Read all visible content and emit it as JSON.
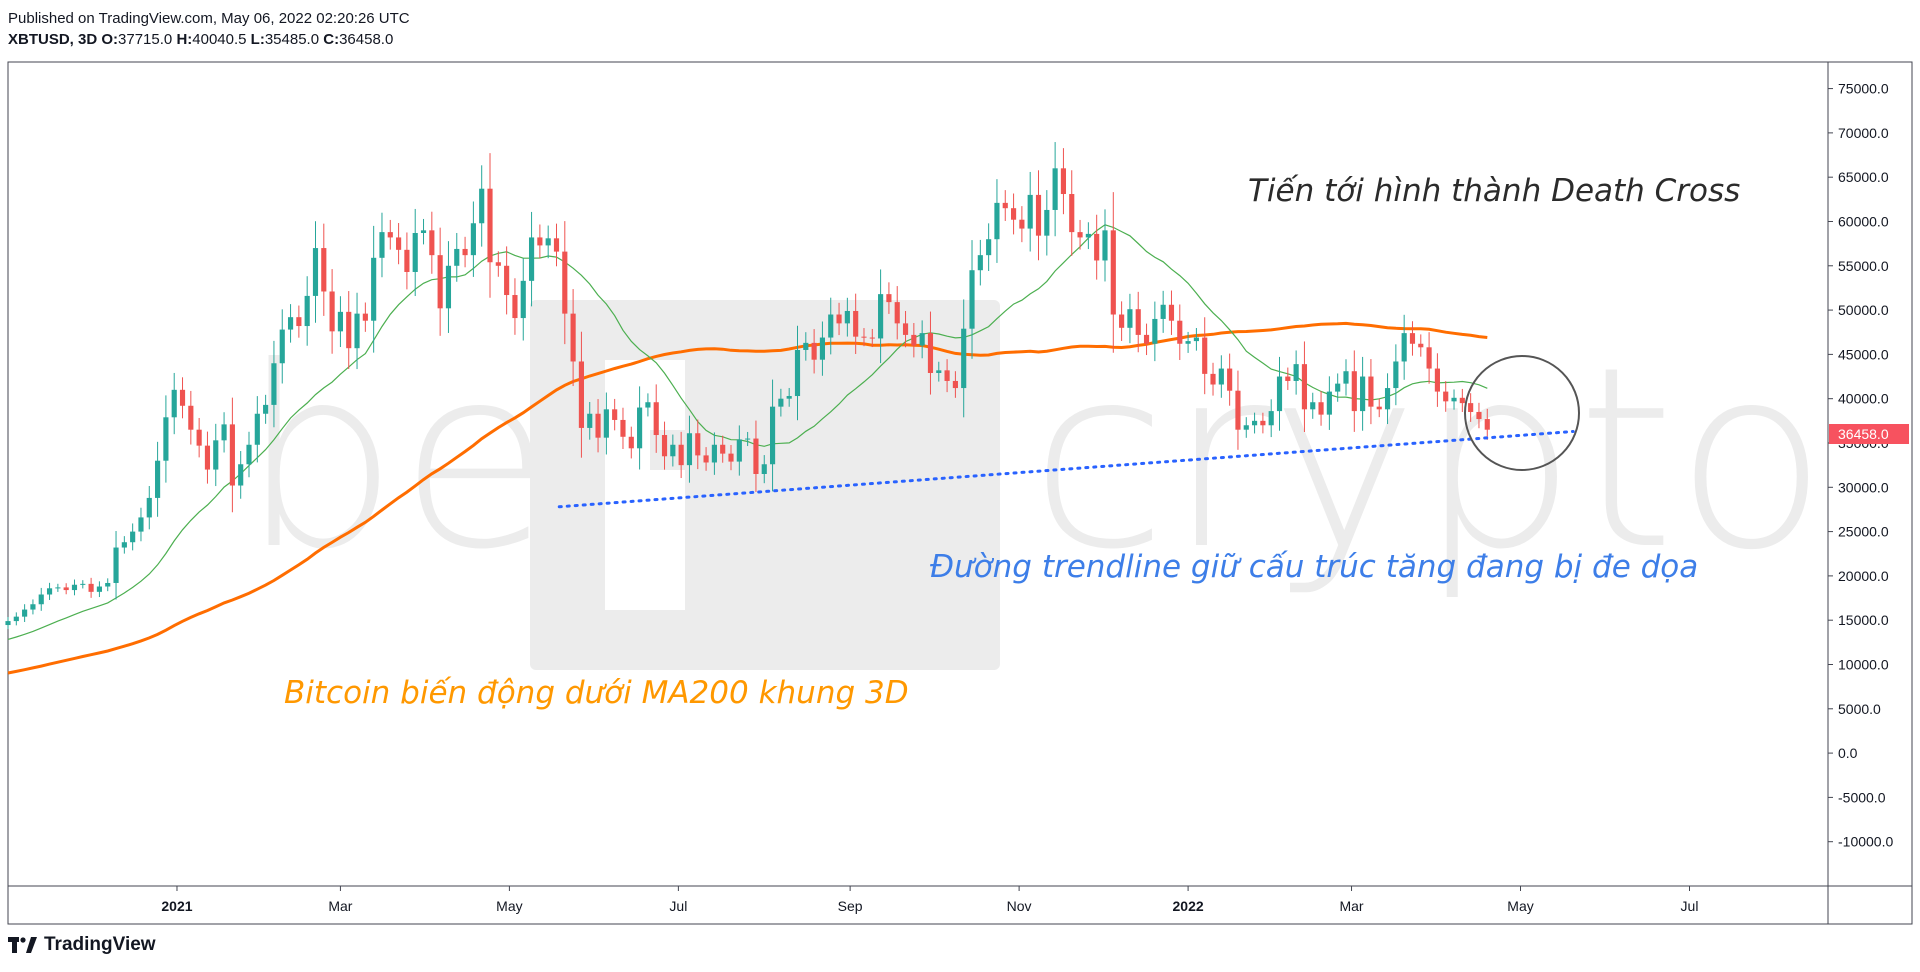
{
  "header": {
    "published": "Published on TradingView.com, May 06, 2022 02:20:26 UTC",
    "symbol": "XBTUSD, 3D",
    "o_label": "O:",
    "o_value": "37715.0",
    "h_label": "H:",
    "h_value": "40040.5",
    "l_label": "L:",
    "l_value": "35485.0",
    "c_label": "C:",
    "c_value": "36458.0"
  },
  "footer": {
    "brand": "TradingView"
  },
  "watermark": {
    "left": "be",
    "right": "crypto"
  },
  "colors": {
    "up": "#26a69a",
    "down": "#ef5350",
    "ma200": "#ff6d00",
    "ma50": "#4caf50",
    "trend": "#2962ff",
    "last_price_bg": "#f7525f",
    "anno_orange": "#ff9800",
    "anno_blue": "#3d7ee8",
    "anno_dark": "#2b2b2b"
  },
  "chart_data": {
    "type": "candlestick",
    "symbol": "XBTUSD",
    "timeframe": "3D",
    "ylim": [
      -15000,
      78000
    ],
    "y_ticks": [
      "75000.0",
      "70000.0",
      "65000.0",
      "60000.0",
      "55000.0",
      "50000.0",
      "45000.0",
      "40000.0",
      "35000.0",
      "30000.0",
      "25000.0",
      "20000.0",
      "15000.0",
      "10000.0",
      "5000.0",
      "0.0",
      "-5000.0",
      "-10000.0"
    ],
    "x_ticks": [
      {
        "label": "2021",
        "date": "2021-01-01",
        "year": true
      },
      {
        "label": "Mar",
        "date": "2021-03-01"
      },
      {
        "label": "May",
        "date": "2021-05-01"
      },
      {
        "label": "Jul",
        "date": "2021-07-01"
      },
      {
        "label": "Sep",
        "date": "2021-09-01"
      },
      {
        "label": "Nov",
        "date": "2021-11-01"
      },
      {
        "label": "2022",
        "date": "2022-01-01",
        "year": true
      },
      {
        "label": "Mar",
        "date": "2022-03-01"
      },
      {
        "label": "May",
        "date": "2022-05-01"
      },
      {
        "label": "Jul",
        "date": "2022-07-01"
      }
    ],
    "xlim": [
      "2020-11-01",
      "2022-08-20"
    ],
    "last_price": "36458.0",
    "closes": [
      14900,
      15400,
      16200,
      16800,
      17900,
      18600,
      18700,
      18400,
      19000,
      19100,
      18200,
      18800,
      19200,
      23200,
      23800,
      25000,
      26600,
      28800,
      33000,
      37900,
      41000,
      39200,
      36500,
      34700,
      32000,
      35300,
      37100,
      30200,
      32600,
      34800,
      38300,
      39300,
      44000,
      47800,
      49200,
      48200,
      51600,
      57000,
      52100,
      47600,
      49800,
      45700,
      49600,
      48800,
      55900,
      58800,
      58200,
      56800,
      54300,
      58700,
      59000,
      56200,
      50200,
      55000,
      56900,
      56200,
      59800,
      63700,
      55400,
      55000,
      51700,
      49100,
      53300,
      58200,
      57300,
      58100,
      56600,
      49600,
      44200,
      36700,
      38300,
      35600,
      38800,
      37600,
      35700,
      34400,
      39000,
      39600,
      35900,
      33500,
      34800,
      32500,
      36100,
      33600,
      32800,
      34800,
      33800,
      32900,
      35400,
      35500,
      31500,
      32600,
      39100,
      40000,
      40300,
      45500,
      46300,
      44400,
      46900,
      49500,
      48500,
      49900,
      47000,
      46900,
      46800,
      51800,
      50900,
      48500,
      47200,
      46000,
      47400,
      42900,
      43200,
      42000,
      41200,
      47900,
      54500,
      56200,
      58000,
      62100,
      61500,
      60200,
      59200,
      63000,
      58400,
      61300,
      66000,
      63100,
      58800,
      58200,
      58600,
      55600,
      59000,
      49500,
      48000,
      50100,
      47200,
      46200,
      49000,
      50600,
      48800,
      46200,
      46500,
      46900,
      42800,
      41600,
      43400,
      40900,
      36500,
      37000,
      37500,
      37000,
      38600,
      42500,
      42000,
      43900,
      38800,
      39600,
      38200,
      40800,
      41700,
      43100,
      38600,
      42500,
      39100,
      38800,
      41200,
      44200,
      47400,
      46200,
      45800,
      43400,
      40800,
      39700,
      40100,
      39500,
      38500,
      37700,
      36500
    ],
    "series": [
      {
        "name": "MA200"
      },
      {
        "name": "MA50"
      }
    ],
    "annotations": [
      {
        "text": "Bitcoin biến động dưới MA200 khung 3D",
        "color": "orange"
      },
      {
        "text": "Đường trendline giữ cấu trúc tăng đang bị đe dọa",
        "color": "blue"
      },
      {
        "text": "Tiến tới hình thành Death Cross",
        "color": "dark"
      }
    ]
  }
}
